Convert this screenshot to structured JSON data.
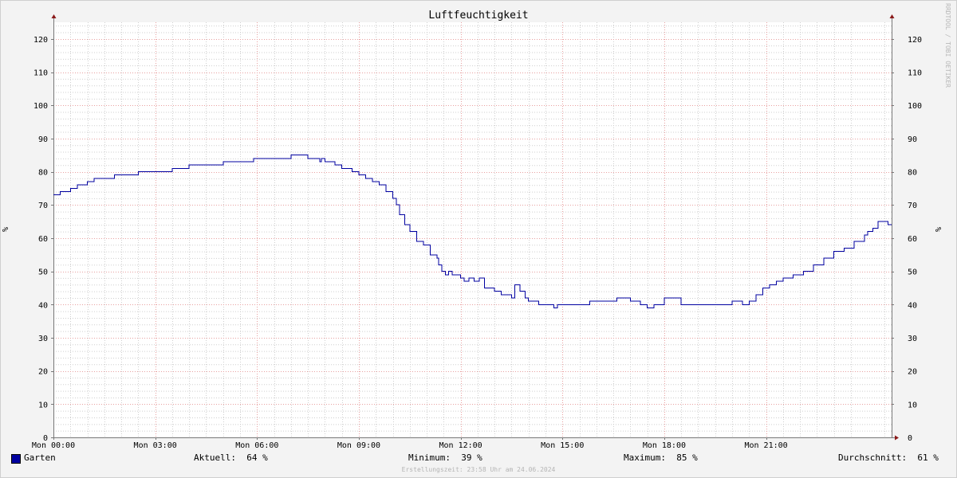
{
  "chart_data": {
    "type": "line",
    "title": "Luftfeuchtigkeit",
    "ylabel": "%",
    "ylabel_right": "%",
    "ylim": [
      0,
      125
    ],
    "yticks": [
      0,
      10,
      20,
      30,
      40,
      50,
      60,
      70,
      80,
      90,
      100,
      110,
      120
    ],
    "x_tick_labels": [
      "Mon 00:00",
      "Mon 03:00",
      "Mon 06:00",
      "Mon 09:00",
      "Mon 12:00",
      "Mon 15:00",
      "Mon 18:00",
      "Mon 21:00"
    ],
    "xlim_hours": [
      0,
      24.7
    ],
    "grid": true,
    "series": [
      {
        "name": "Garten",
        "color": "#0000a0",
        "x_hours": [
          0,
          0.2,
          0.5,
          0.7,
          1.0,
          1.2,
          1.5,
          1.8,
          2.2,
          2.5,
          3.0,
          3.5,
          4.0,
          4.5,
          5.0,
          5.5,
          5.9,
          6.0,
          6.5,
          7.0,
          7.5,
          7.8,
          7.85,
          7.9,
          8.0,
          8.3,
          8.5,
          8.8,
          9.0,
          9.2,
          9.4,
          9.6,
          9.8,
          10.0,
          10.1,
          10.2,
          10.35,
          10.5,
          10.7,
          10.9,
          11.1,
          11.3,
          11.35,
          11.45,
          11.55,
          11.65,
          11.75,
          11.9,
          12.0,
          12.1,
          12.25,
          12.4,
          12.55,
          12.7,
          12.9,
          13.0,
          13.2,
          13.3,
          13.5,
          13.6,
          13.75,
          13.9,
          14.0,
          14.1,
          14.3,
          14.6,
          14.75,
          14.85,
          15.0,
          15.4,
          15.8,
          16.1,
          16.3,
          16.6,
          17.0,
          17.3,
          17.5,
          17.7,
          18.0,
          18.5,
          18.8,
          19.2,
          19.6,
          20.0,
          20.3,
          20.5,
          20.7,
          20.9,
          21.1,
          21.3,
          21.5,
          21.8,
          22.1,
          22.4,
          22.7,
          23.0,
          23.3,
          23.6,
          23.9,
          24.0,
          24.15,
          24.3,
          24.6
        ],
        "values": [
          73,
          74,
          75,
          76,
          77,
          78,
          78,
          79,
          79,
          80,
          80,
          81,
          82,
          82,
          83,
          83,
          84,
          84,
          84,
          85,
          84,
          84,
          83,
          84,
          83,
          82,
          81,
          80,
          79,
          78,
          77,
          76,
          74,
          72,
          70,
          67,
          64,
          62,
          59,
          58,
          55,
          54,
          52,
          50,
          49,
          50,
          49,
          49,
          48,
          47,
          48,
          47,
          48,
          45,
          45,
          44,
          43,
          43,
          42,
          46,
          44,
          42,
          41,
          41,
          40,
          40,
          39,
          40,
          40,
          40,
          41,
          41,
          41,
          42,
          41,
          40,
          39,
          40,
          42,
          40,
          40,
          40,
          40,
          41,
          40,
          41,
          43,
          45,
          46,
          47,
          48,
          49,
          50,
          52,
          54,
          56,
          57,
          59,
          61,
          62,
          63,
          65,
          64
        ]
      }
    ]
  },
  "legend": {
    "series_name": "Garten",
    "current": "Aktuell:  64 %",
    "minimum": "Minimum:  39 %",
    "maximum": "Maximum:  85 %",
    "average": "Durchschnitt:  61 %"
  },
  "footer": "Erstellungszeit: 23:58 Uhr am 24.06.2024",
  "watermark": "RRDTOOL / TOBI OETIKER"
}
